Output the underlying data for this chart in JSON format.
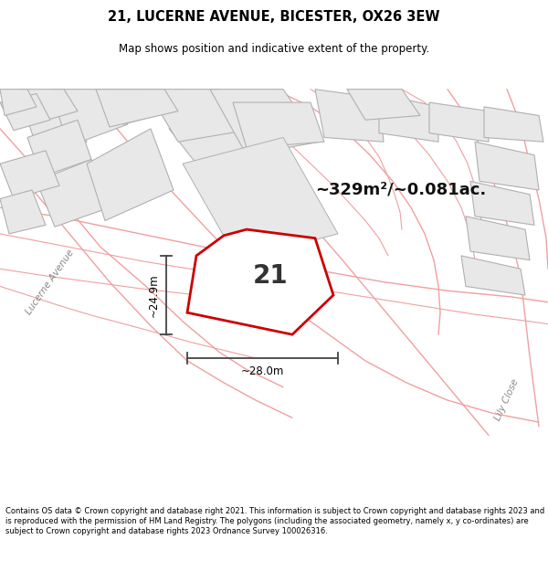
{
  "title": "21, LUCERNE AVENUE, BICESTER, OX26 3EW",
  "subtitle": "Map shows position and indicative extent of the property.",
  "area_text": "~329m²/~0.081ac.",
  "plot_number": "21",
  "dim_width": "~28.0m",
  "dim_height": "~24.9m",
  "footer": "Contains OS data © Crown copyright and database right 2021. This information is subject to Crown copyright and database rights 2023 and is reproduced with the permission of HM Land Registry. The polygons (including the associated geometry, namely x, y co-ordinates) are subject to Crown copyright and database rights 2023 Ordnance Survey 100026316.",
  "plot_edge_color": "#cc0000",
  "road_label_lucerne": "Lucerne Avenue",
  "road_label_lily": "Lily Close",
  "parcel_fill": "#e8e8e8",
  "parcel_edge": "#b0b0b0",
  "road_line_color": "#f0a0a0",
  "map_bg": "#ffffff"
}
